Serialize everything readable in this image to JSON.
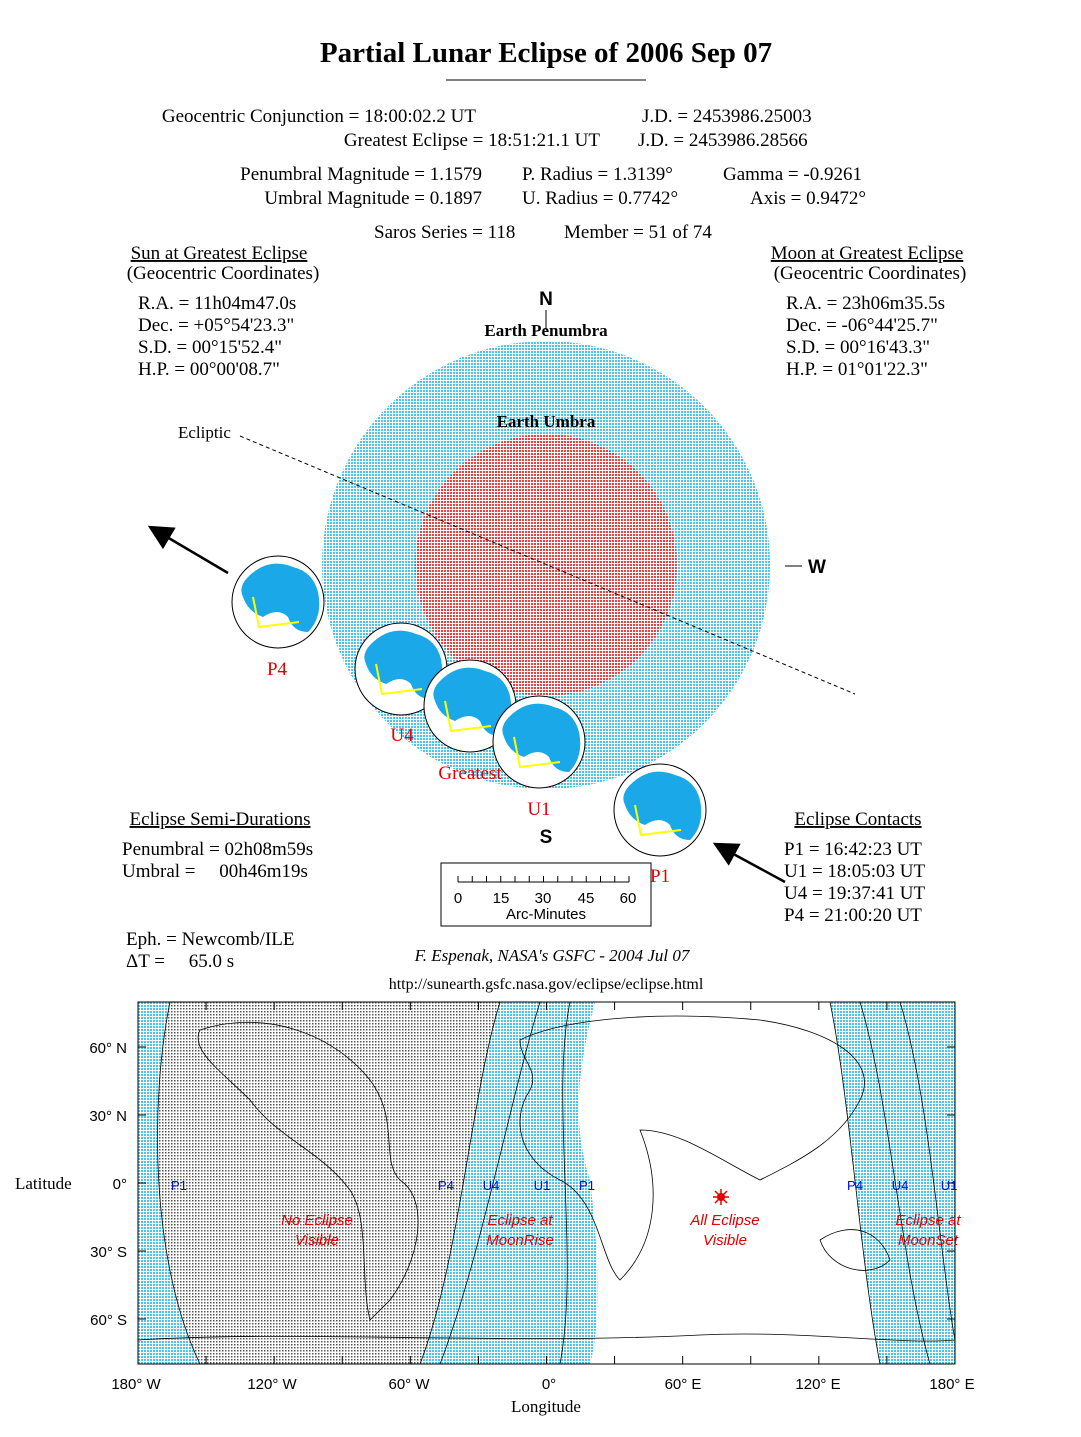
{
  "title": "Partial Lunar Eclipse of  2006 Sep 07",
  "header": {
    "conj_label": "Geocentric Conjunction =  18:00:02.2 UT",
    "conj_jd": "J.D. =  2453986.25003",
    "greatest_label": "Greatest Eclipse =  18:51:21.1 UT",
    "greatest_jd": "J.D. =  2453986.28566",
    "pen_mag": "Penumbral Magnitude =  1.1579",
    "p_radius": "P. Radius = 1.3139°",
    "gamma": "Gamma = -0.9261",
    "umb_mag": "Umbral Magnitude =  0.1897",
    "u_radius": "U. Radius = 0.7742°",
    "axis": "Axis =  0.9472°",
    "saros": "Saros Series = 118",
    "member": "Member = 51 of 74"
  },
  "sun": {
    "title": "Sun at Greatest Eclipse",
    "sub": "(Geocentric Coordinates)",
    "ra": "R.A. =  11h04m47.0s",
    "dec": "Dec. = +05°54'23.3\"",
    "sd": "S.D. =  00°15'52.4\"",
    "hp": "H.P. =  00°00'08.7\""
  },
  "moon": {
    "title": "Moon at Greatest Eclipse",
    "sub": "(Geocentric Coordinates)",
    "ra": "R.A. =  23h06m35.5s",
    "dec": "Dec. = -06°44'25.7\"",
    "sd": "S.D. =  00°16'43.3\"",
    "hp": "H.P. =  01°01'22.3\""
  },
  "diagram": {
    "north": "N",
    "south": "S",
    "west": "W",
    "penumbra": "Earth Penumbra",
    "umbra": "Earth Umbra",
    "ecliptic": "Ecliptic",
    "moons": [
      "P4",
      "U4",
      "Greatest",
      "U1",
      "P1"
    ],
    "colors": {
      "penumbra": "#8fd8f0",
      "umbra": "#f06060",
      "moon_land": "#1aa8e8",
      "path": "#ffff00",
      "label": "#e00000"
    }
  },
  "semi": {
    "title": "Eclipse Semi-Durations",
    "pen": "Penumbral = 02h08m59s",
    "umb": "Umbral =     00h46m19s"
  },
  "contacts": {
    "title": "Eclipse Contacts",
    "p1": "P1 = 16:42:23 UT",
    "u1": "U1 = 18:05:03 UT",
    "u4": "U4 = 19:37:41 UT",
    "p4": "P4 = 21:00:20 UT"
  },
  "scale": {
    "ticks": [
      "0",
      "15",
      "30",
      "45",
      "60"
    ],
    "label": "Arc-Minutes"
  },
  "eph": {
    "eph": "Eph. = Newcomb/ILE",
    "dt": "ΔT =     65.0 s"
  },
  "credit": "F. Espenak, NASA's GSFC - 2004 Jul 07",
  "url": "http://sunearth.gsfc.nasa.gov/eclipse/eclipse.html",
  "map": {
    "ylabel": "Latitude",
    "xlabel": "Longitude",
    "lat_ticks": [
      "60° N",
      "30° N",
      "0°",
      "30° S",
      "60° S"
    ],
    "lon_ticks": [
      "180° W",
      "120° W",
      "60° W",
      "0°",
      "60° E",
      "120° E",
      "180° E"
    ],
    "curve_labels": [
      "P1",
      "P4",
      "U4",
      "U1",
      "P1",
      "P4",
      "U4",
      "U1"
    ],
    "region_no": [
      "No Eclipse",
      "Visible"
    ],
    "region_rise": [
      "Eclipse at",
      "MoonRise"
    ],
    "region_all": [
      "All Eclipse",
      "Visible"
    ],
    "region_set": [
      "Eclipse at",
      "MoonSet"
    ]
  }
}
